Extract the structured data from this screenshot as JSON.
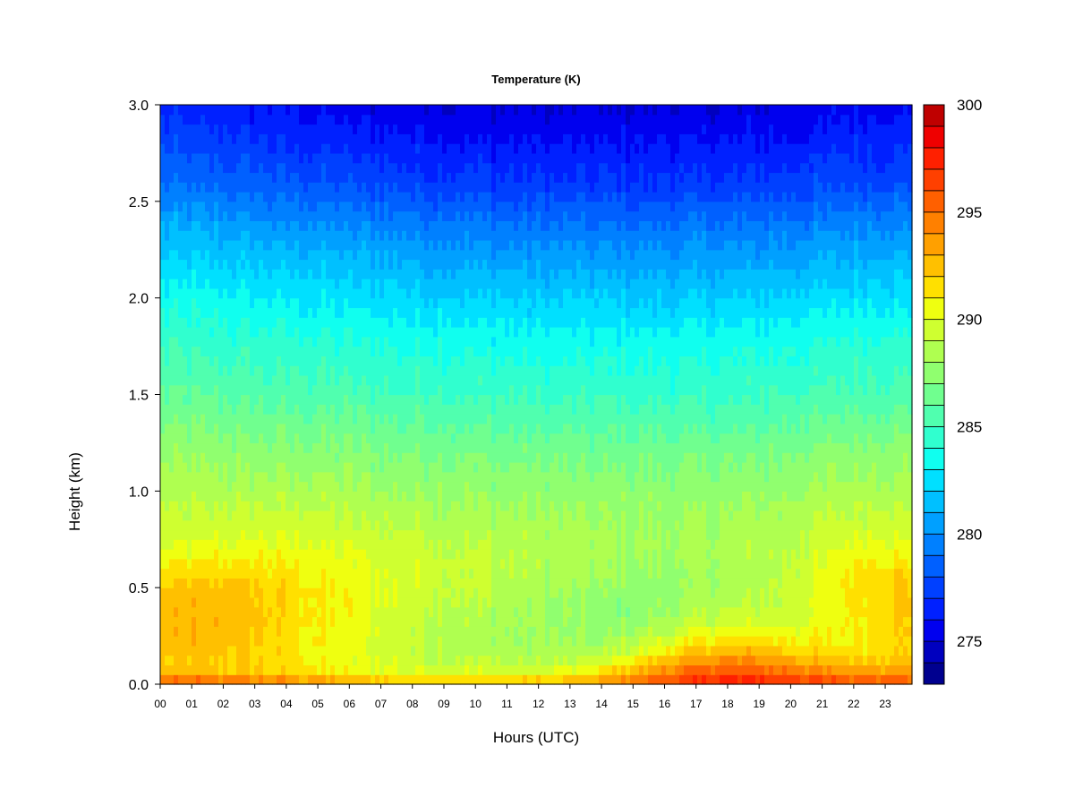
{
  "chart_data": {
    "type": "heatmap",
    "title": "Temperature (K)",
    "xlabel": "Hours (UTC)",
    "ylabel": "Height (km)",
    "xlim": [
      0,
      23.85
    ],
    "ylim": [
      0,
      3.0
    ],
    "x_ticks": [
      0,
      1,
      2,
      3,
      4,
      5,
      6,
      7,
      8,
      9,
      10,
      11,
      12,
      13,
      14,
      15,
      16,
      17,
      18,
      19,
      20,
      21,
      22,
      23
    ],
    "x_tick_labels": [
      "00",
      "01",
      "02",
      "03",
      "04",
      "05",
      "06",
      "07",
      "08",
      "09",
      "10",
      "11",
      "12",
      "13",
      "14",
      "15",
      "16",
      "17",
      "18",
      "19",
      "20",
      "21",
      "22",
      "23"
    ],
    "y_ticks": [
      0,
      0.5,
      1.0,
      1.5,
      2.0,
      2.5,
      3.0
    ],
    "y_tick_labels": [
      "0.0",
      "0.5",
      "1.0",
      "1.5",
      "2.0",
      "2.5",
      "3.0"
    ],
    "colorbar": {
      "min": 273,
      "max": 300,
      "step": 1,
      "ticks": [
        275,
        280,
        285,
        290,
        295,
        300
      ],
      "tick_labels": [
        "275",
        "280",
        "285",
        "290",
        "295",
        "300"
      ],
      "colors": [
        "#00008F",
        "#0000BF",
        "#0000EF",
        "#0020FF",
        "#0040FF",
        "#0060FF",
        "#0080FF",
        "#00A0FF",
        "#00C0FF",
        "#00E0FF",
        "#10FFEF",
        "#30FFCF",
        "#50FFAF",
        "#70FF8F",
        "#90FF6F",
        "#AFFF50",
        "#CFFF30",
        "#EFFF10",
        "#FFE000",
        "#FFC000",
        "#FFA000",
        "#FF8000",
        "#FF6000",
        "#FF4000",
        "#FF2000",
        "#EF0000",
        "#BF0000",
        "#8F0000"
      ]
    },
    "x_hours": [
      0,
      1,
      2,
      3,
      4,
      5,
      6,
      7,
      8,
      9,
      10,
      11,
      12,
      13,
      14,
      15,
      16,
      17,
      18,
      19,
      20,
      21,
      22,
      23,
      23.85
    ],
    "heights_km": [
      0.0,
      0.05,
      0.1,
      0.2,
      0.3,
      0.4,
      0.5,
      0.6,
      0.7,
      0.8,
      1.0,
      1.2,
      1.5,
      1.8,
      2.0,
      2.3,
      2.6,
      3.0
    ],
    "temperature_K": [
      [
        296.5,
        293.0,
        292.0,
        292.3,
        292.4,
        292.3,
        292.0,
        291.0,
        290.0,
        289.3,
        288.5,
        287.8,
        286.0,
        284.7,
        283.5,
        281.5,
        279.0,
        276.5
      ],
      [
        296.5,
        293.0,
        292.0,
        292.5,
        292.6,
        292.6,
        292.3,
        291.2,
        290.2,
        289.4,
        288.5,
        287.7,
        285.9,
        284.5,
        283.4,
        281.4,
        278.8,
        276.4
      ],
      [
        296.0,
        292.8,
        292.0,
        292.4,
        292.6,
        292.6,
        292.4,
        291.4,
        290.4,
        289.5,
        288.5,
        287.6,
        285.8,
        284.4,
        283.2,
        281.2,
        278.6,
        276.2
      ],
      [
        295.5,
        292.5,
        291.8,
        292.0,
        292.2,
        292.3,
        292.1,
        291.3,
        290.5,
        289.6,
        288.5,
        287.5,
        285.6,
        284.2,
        283.0,
        281.0,
        278.4,
        276.0
      ],
      [
        295.0,
        292.0,
        291.3,
        291.4,
        291.6,
        291.7,
        291.6,
        291.1,
        290.4,
        289.6,
        288.4,
        287.4,
        285.5,
        284.1,
        282.9,
        280.8,
        278.2,
        275.8
      ],
      [
        294.5,
        291.5,
        290.8,
        290.8,
        291.0,
        291.1,
        291.0,
        290.7,
        290.2,
        289.5,
        288.3,
        287.3,
        285.4,
        284.0,
        282.8,
        280.7,
        278.0,
        275.6
      ],
      [
        294.0,
        291.0,
        290.3,
        290.2,
        290.4,
        290.6,
        290.6,
        290.3,
        289.9,
        289.3,
        288.2,
        287.2,
        285.3,
        283.9,
        282.6,
        280.5,
        277.8,
        275.4
      ],
      [
        293.5,
        290.6,
        289.9,
        289.6,
        289.8,
        290.0,
        290.1,
        290.0,
        289.6,
        289.1,
        288.1,
        287.1,
        285.2,
        283.8,
        282.5,
        280.3,
        277.6,
        275.3
      ],
      [
        293.2,
        290.3,
        289.5,
        289.1,
        289.3,
        289.6,
        289.7,
        289.7,
        289.4,
        288.9,
        288.0,
        287.0,
        285.1,
        283.7,
        282.3,
        280.2,
        277.5,
        275.2
      ],
      [
        293.0,
        290.1,
        289.2,
        288.7,
        288.9,
        289.2,
        289.4,
        289.4,
        289.2,
        288.8,
        287.9,
        286.9,
        285.0,
        283.6,
        282.2,
        280.0,
        277.4,
        275.1
      ],
      [
        292.9,
        290.0,
        289.0,
        288.4,
        288.5,
        288.8,
        289.1,
        289.2,
        289.0,
        288.6,
        287.8,
        286.8,
        284.9,
        283.5,
        282.1,
        279.9,
        277.3,
        275.0
      ],
      [
        292.9,
        290.1,
        289.0,
        288.2,
        288.2,
        288.5,
        288.8,
        289.0,
        288.9,
        288.5,
        287.7,
        286.7,
        284.8,
        283.4,
        282.0,
        279.8,
        277.2,
        275.0
      ],
      [
        293.0,
        290.3,
        289.0,
        288.0,
        287.9,
        288.1,
        288.5,
        288.7,
        288.7,
        288.4,
        287.6,
        286.6,
        284.7,
        283.3,
        281.9,
        279.7,
        277.1,
        274.9
      ],
      [
        293.3,
        290.8,
        289.3,
        287.9,
        287.6,
        287.8,
        288.1,
        288.4,
        288.5,
        288.3,
        287.5,
        286.6,
        284.7,
        283.3,
        281.9,
        279.7,
        277.1,
        274.9
      ],
      [
        294.5,
        292.0,
        290.0,
        288.2,
        287.5,
        287.4,
        287.7,
        288.1,
        288.3,
        288.2,
        287.5,
        286.6,
        284.7,
        283.3,
        281.9,
        279.7,
        277.1,
        274.9
      ],
      [
        295.5,
        293.5,
        291.5,
        289.0,
        287.8,
        287.3,
        287.5,
        287.9,
        288.2,
        288.1,
        287.5,
        286.6,
        284.7,
        283.3,
        281.9,
        279.7,
        277.1,
        274.9
      ],
      [
        296.5,
        295.0,
        293.0,
        290.3,
        288.5,
        287.7,
        287.6,
        287.9,
        288.2,
        288.1,
        287.5,
        286.6,
        284.7,
        283.3,
        281.9,
        279.7,
        277.1,
        274.9
      ],
      [
        297.5,
        296.0,
        294.2,
        291.5,
        289.3,
        288.2,
        287.9,
        288.0,
        288.2,
        288.1,
        287.5,
        286.6,
        284.7,
        283.3,
        281.9,
        279.7,
        277.1,
        274.9
      ],
      [
        298.0,
        296.5,
        294.7,
        292.0,
        289.8,
        288.7,
        288.3,
        288.3,
        288.4,
        288.2,
        287.6,
        286.7,
        284.8,
        283.4,
        282.0,
        279.8,
        277.2,
        275.0
      ],
      [
        297.8,
        296.3,
        294.5,
        291.8,
        289.9,
        289.0,
        288.7,
        288.6,
        288.6,
        288.4,
        287.7,
        286.8,
        284.9,
        283.5,
        282.1,
        279.9,
        277.3,
        275.1
      ],
      [
        297.3,
        295.8,
        293.9,
        291.3,
        290.0,
        289.5,
        289.3,
        289.2,
        289.0,
        288.7,
        287.9,
        287.0,
        285.0,
        283.6,
        282.2,
        280.0,
        277.4,
        275.2
      ],
      [
        296.8,
        295.2,
        293.2,
        291.0,
        290.3,
        290.2,
        290.2,
        290.0,
        289.6,
        289.1,
        288.2,
        287.2,
        285.2,
        283.8,
        282.4,
        280.2,
        277.6,
        275.4
      ],
      [
        296.5,
        294.5,
        292.6,
        291.1,
        291.0,
        291.3,
        291.4,
        291.1,
        290.4,
        289.6,
        288.5,
        287.5,
        285.4,
        284.0,
        282.6,
        280.4,
        277.8,
        275.6
      ],
      [
        296.5,
        294.2,
        292.5,
        291.5,
        291.7,
        292.0,
        292.0,
        291.5,
        290.6,
        289.7,
        288.6,
        287.6,
        285.5,
        284.1,
        282.7,
        280.5,
        277.9,
        275.7
      ],
      [
        296.5,
        294.0,
        292.6,
        291.9,
        292.0,
        292.2,
        292.1,
        291.6,
        290.6,
        289.7,
        288.6,
        287.6,
        285.5,
        284.1,
        282.7,
        280.5,
        277.9,
        275.7
      ]
    ]
  }
}
